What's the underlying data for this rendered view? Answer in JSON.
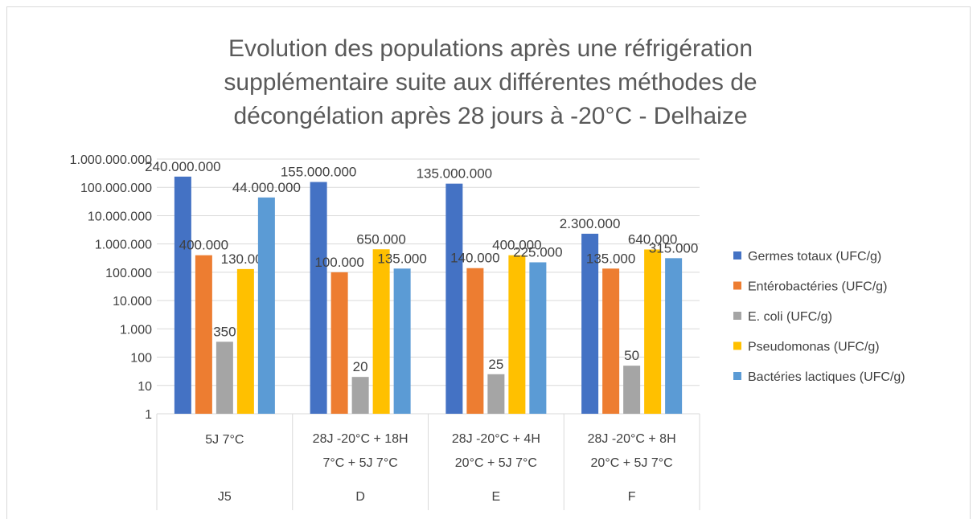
{
  "chart_data": {
    "type": "bar",
    "title": [
      "Evolution des populations après une réfrigération",
      "supplémentaire suite aux différentes méthodes de",
      "décongélation après 28 jours à -20°C - Delhaize"
    ],
    "categories": [
      [
        "5J 7°C"
      ],
      [
        "28J -20°C + 18H",
        "7°C + 5J 7°C"
      ],
      [
        "28J -20°C + 4H",
        "20°C + 5J 7°C"
      ],
      [
        "28J -20°C + 8H",
        "20°C + 5J 7°C"
      ]
    ],
    "groups": [
      "J5",
      "D",
      "E",
      "F"
    ],
    "series": [
      {
        "name": "Germes totaux (UFC/g)",
        "color": "#4472c4",
        "values": [
          240000000,
          155000000,
          135000000,
          2300000
        ],
        "value_labels": [
          "240.000.000",
          "155.000.000",
          "135.000.000",
          "2.300.000"
        ]
      },
      {
        "name": "Entérobactéries (UFC/g)",
        "color": "#ed7d31",
        "values": [
          400000,
          100000,
          140000,
          135000
        ],
        "value_labels": [
          "400.000",
          "100.000",
          "140.000",
          "135.000"
        ]
      },
      {
        "name": "E. coli (UFC/g)",
        "color": "#a5a5a5",
        "values": [
          350,
          20,
          25,
          50
        ]
      },
      {
        "name": "Pseudomonas (UFC/g)",
        "color": "#ffc000",
        "values": [
          130000,
          650000,
          400000,
          640000
        ],
        "value_labels": [
          "130.000",
          "650.000",
          "400.000",
          "640.000"
        ]
      },
      {
        "name": "Bactéries lactiques (UFC/g)",
        "color": "#5b9bd5",
        "values": [
          44000000,
          135000,
          225000,
          315000
        ],
        "value_labels": [
          "44.000.000",
          "135.000",
          "225.000",
          "315.000"
        ]
      }
    ],
    "log_scale": true,
    "ylim": [
      1,
      1000000000
    ],
    "yticks": [
      1,
      10,
      100,
      {
        "value": 1000,
        "label": "1.000"
      },
      {
        "value": 10000,
        "label": "10.000"
      },
      {
        "value": 100000,
        "label": "100.000"
      },
      {
        "value": 1000000,
        "label": "1.000.000"
      },
      {
        "value": 10000000,
        "label": "10.000.000"
      },
      {
        "value": 100000000,
        "label": "100.000.000"
      },
      {
        "value": 1000000000,
        "label": "1.000.000.000"
      }
    ],
    "grid": true,
    "legend": "right"
  }
}
